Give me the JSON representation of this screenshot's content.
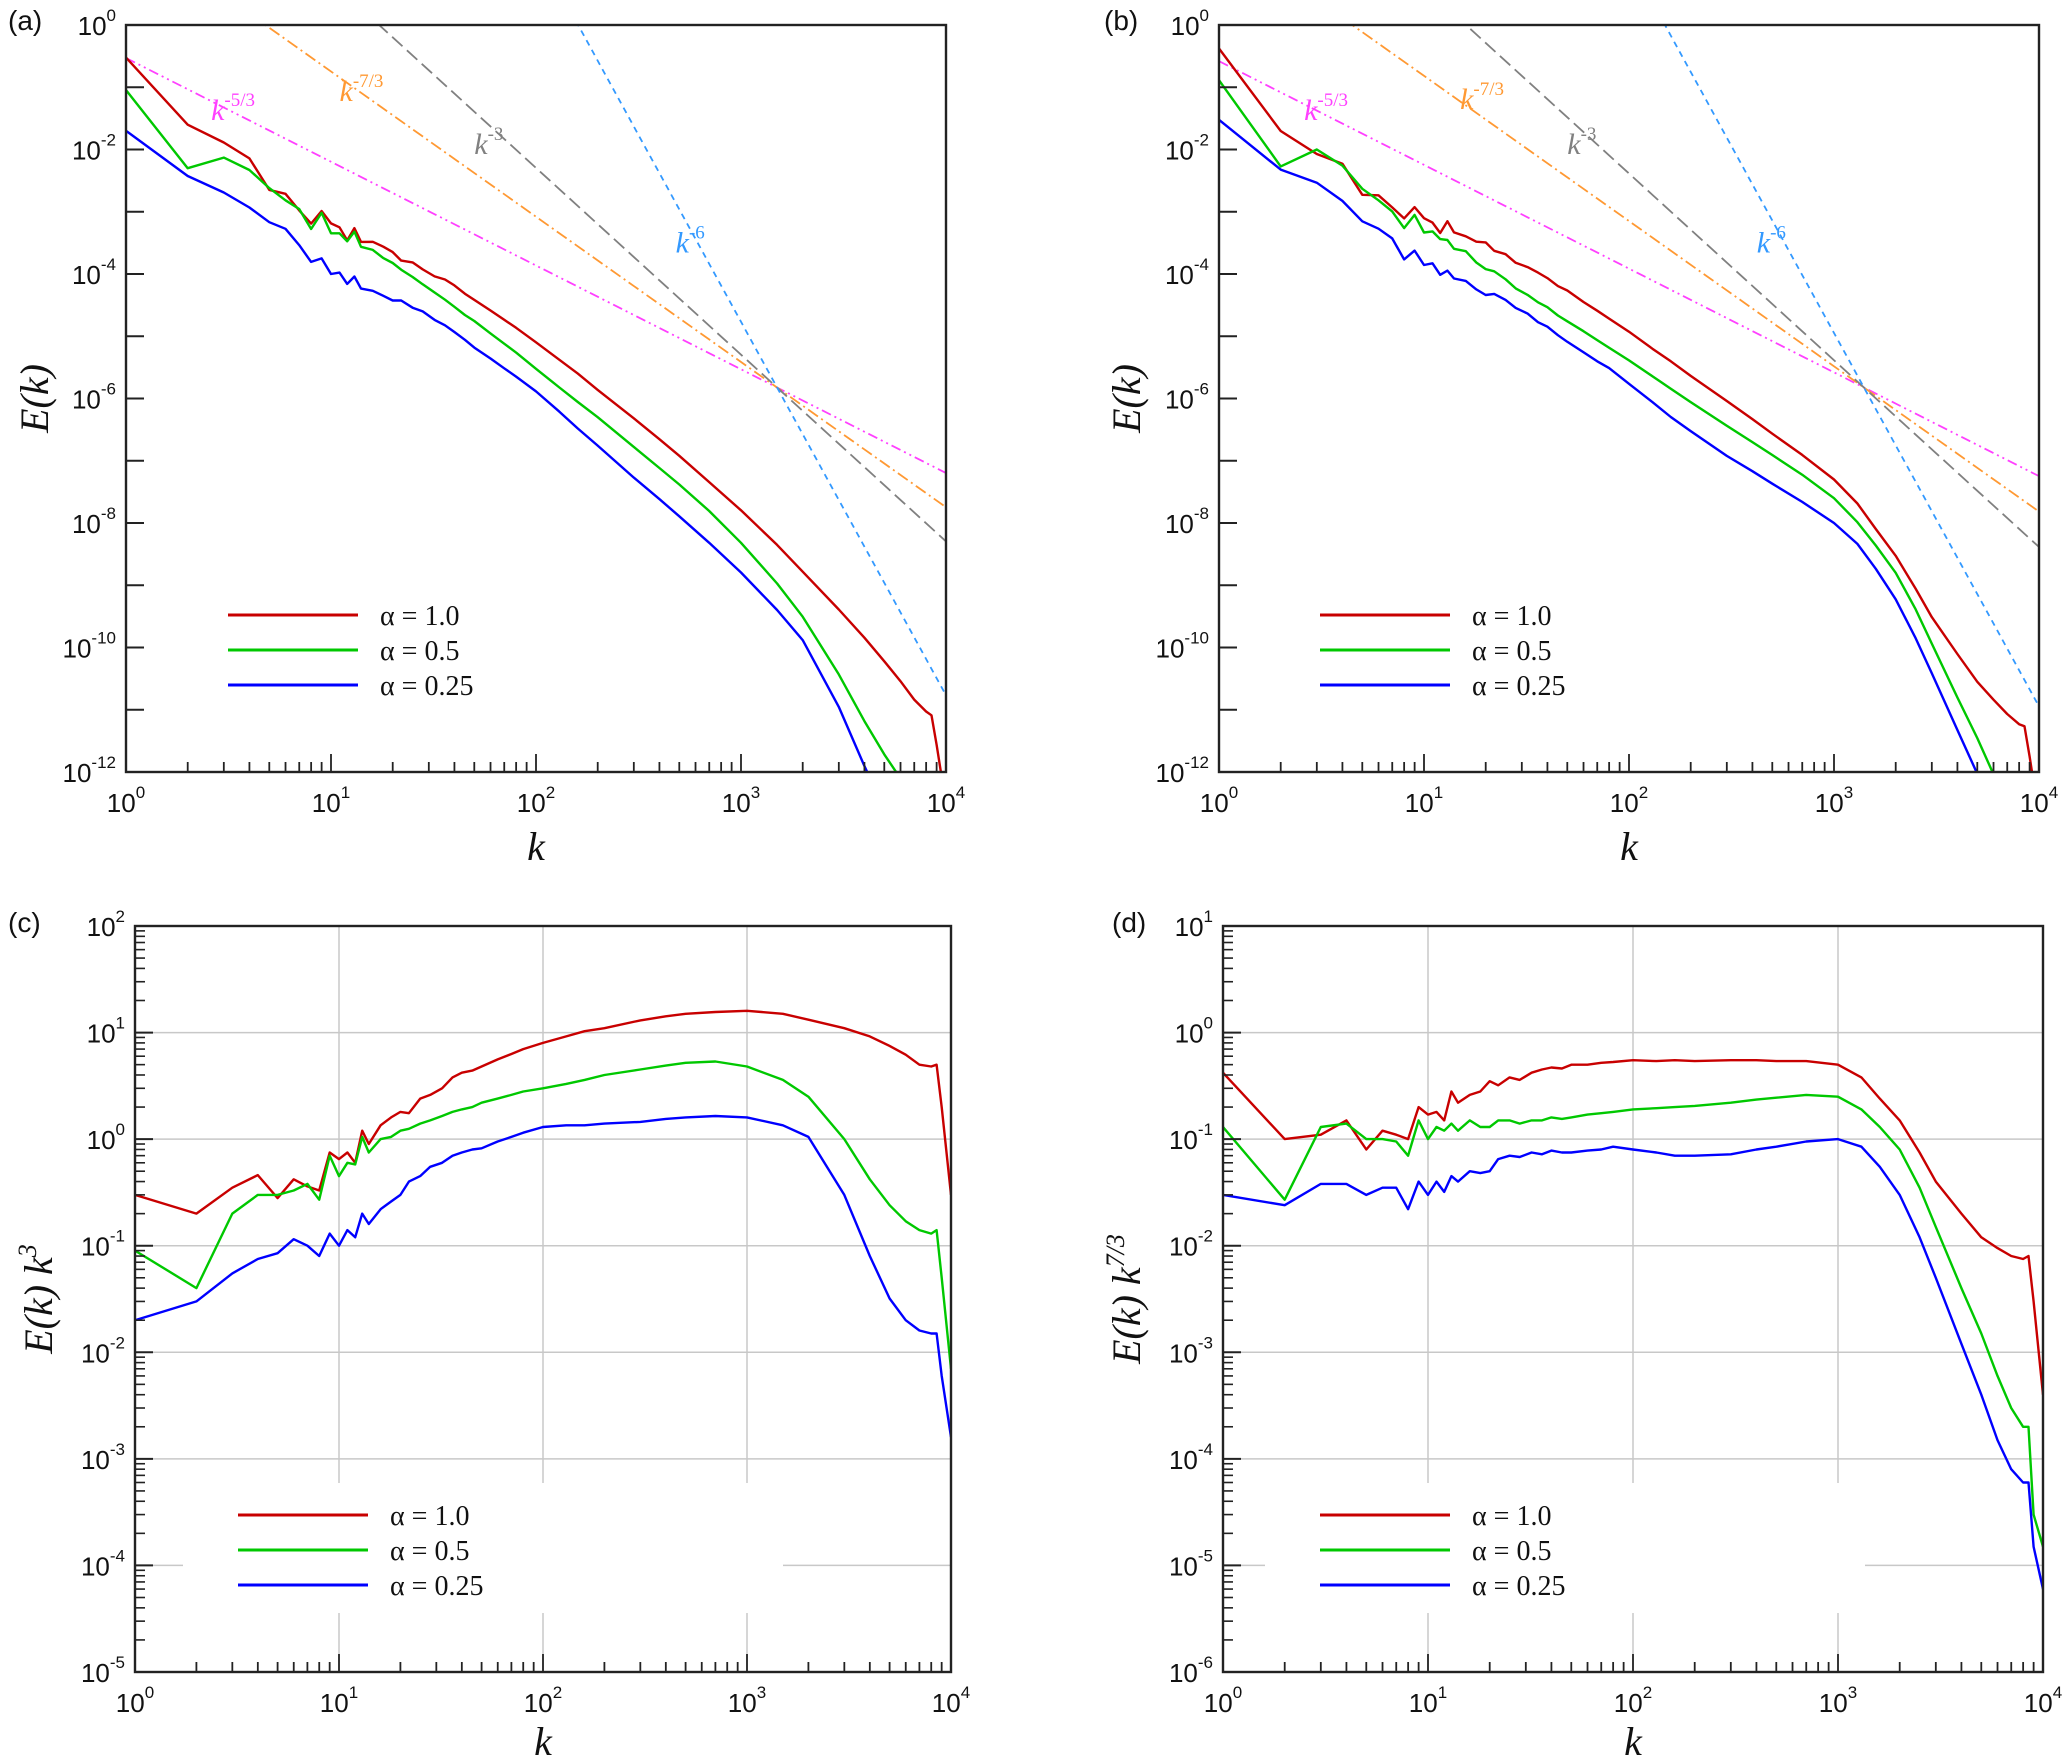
{
  "figure": {
    "colors": {
      "alpha_1_0": "#c80000",
      "alpha_0_5": "#00c800",
      "alpha_0_25": "#0000ff",
      "ref_5_3": "#ff40ff",
      "ref_7_3": "#ff9933",
      "ref_3": "#808080",
      "ref_6": "#3399ff",
      "grid": "#c8c8c8",
      "axis": "#222222"
    }
  },
  "chart_data": [
    {
      "panel": "(a)",
      "type": "line",
      "xscale": "log",
      "yscale": "log",
      "xlabel": "k",
      "ylabel": "E(k)",
      "ylabel_sup": "",
      "xlim": [
        1,
        10000
      ],
      "ylim": [
        1e-12,
        1
      ],
      "x_ticks": [
        {
          "base": "10",
          "exp": "0"
        },
        {
          "base": "10",
          "exp": "1"
        },
        {
          "base": "10",
          "exp": "2"
        },
        {
          "base": "10",
          "exp": "3"
        },
        {
          "base": "10",
          "exp": "4"
        }
      ],
      "y_ticks": [
        {
          "base": "10",
          "exp": "-12",
          "v": -12
        },
        {
          "base": "10",
          "exp": "-10",
          "v": -10
        },
        {
          "base": "10",
          "exp": "-8",
          "v": -8
        },
        {
          "base": "10",
          "exp": "-6",
          "v": -6
        },
        {
          "base": "10",
          "exp": "-4",
          "v": -4
        },
        {
          "base": "10",
          "exp": "-2",
          "v": -2
        },
        {
          "base": "10",
          "exp": "0",
          "v": 0
        }
      ],
      "grid": false,
      "legend_position": "bottom-left",
      "compensation_exponent": 0,
      "series_ref": "compensated_k3",
      "reference_lines": [
        {
          "name": "k^-5/3",
          "label_base": "k",
          "label_exp": "-5/3",
          "slope": -1.6667,
          "anchor_k": 1500,
          "anchor_E": 1.5e-06,
          "color_key": "ref_5_3",
          "dash": "10 4 2 4 2 4",
          "label_k": 2.6,
          "label_E": 0.03
        },
        {
          "name": "k^-7/3",
          "label_base": "k",
          "label_exp": "-7/3",
          "slope": -2.3333,
          "anchor_k": 1500,
          "anchor_E": 1.5e-06,
          "color_key": "ref_7_3",
          "dash": "12 4 2 4",
          "label_k": 11,
          "label_E": 0.06
        },
        {
          "name": "k^-3",
          "label_base": "k",
          "label_exp": "-3",
          "slope": -3,
          "anchor_k": 1500,
          "anchor_E": 1.5e-06,
          "color_key": "ref_3",
          "dash": "14 6",
          "label_k": 50,
          "label_E": 0.0085
        },
        {
          "name": "k^-6",
          "label_base": "k",
          "label_exp": "-6",
          "slope": -6,
          "anchor_k": 1500,
          "anchor_E": 1.5e-06,
          "color_key": "ref_6",
          "dash": "6 5",
          "label_k": 480,
          "label_E": 0.00022
        }
      ]
    },
    {
      "panel": "(b)",
      "type": "line",
      "xscale": "log",
      "yscale": "log",
      "xlabel": "k",
      "ylabel": "E(k)",
      "ylabel_sup": "",
      "xlim": [
        1,
        10000
      ],
      "ylim": [
        1e-12,
        1
      ],
      "x_ticks": [
        {
          "base": "10",
          "exp": "0"
        },
        {
          "base": "10",
          "exp": "1"
        },
        {
          "base": "10",
          "exp": "2"
        },
        {
          "base": "10",
          "exp": "3"
        },
        {
          "base": "10",
          "exp": "4"
        }
      ],
      "y_ticks": [
        {
          "base": "10",
          "exp": "-12",
          "v": -12
        },
        {
          "base": "10",
          "exp": "-10",
          "v": -10
        },
        {
          "base": "10",
          "exp": "-8",
          "v": -8
        },
        {
          "base": "10",
          "exp": "-6",
          "v": -6
        },
        {
          "base": "10",
          "exp": "-4",
          "v": -4
        },
        {
          "base": "10",
          "exp": "-2",
          "v": -2
        },
        {
          "base": "10",
          "exp": "0",
          "v": 0
        }
      ],
      "grid": false,
      "legend_position": "bottom-left",
      "compensation_exponent": 0,
      "series_ref": "compensated_k73",
      "reference_lines": [
        {
          "name": "k^-5/3",
          "label_base": "k",
          "label_exp": "-5/3",
          "slope": -1.6667,
          "anchor_k": 1400,
          "anchor_E": 1.5e-06,
          "color_key": "ref_5_3",
          "dash": "10 4 2 4 2 4",
          "label_k": 2.6,
          "label_E": 0.03
        },
        {
          "name": "k^-7/3",
          "label_base": "k",
          "label_exp": "-7/3",
          "slope": -2.3333,
          "anchor_k": 1400,
          "anchor_E": 1.5e-06,
          "color_key": "ref_7_3",
          "dash": "12 4 2 4",
          "label_k": 15,
          "label_E": 0.045
        },
        {
          "name": "k^-3",
          "label_base": "k",
          "label_exp": "-3",
          "slope": -3,
          "anchor_k": 1400,
          "anchor_E": 1.5e-06,
          "color_key": "ref_3",
          "dash": "14 6",
          "label_k": 50,
          "label_E": 0.0085
        },
        {
          "name": "k^-6",
          "label_base": "k",
          "label_exp": "-6",
          "slope": -6,
          "anchor_k": 1400,
          "anchor_E": 1.5e-06,
          "color_key": "ref_6",
          "dash": "6 5",
          "label_k": 420,
          "label_E": 0.00022
        }
      ]
    },
    {
      "panel": "(c)",
      "type": "line",
      "xscale": "log",
      "yscale": "log",
      "xlabel": "k",
      "ylabel": "E(k) k",
      "ylabel_sup": "3",
      "xlim": [
        1,
        10000
      ],
      "ylim": [
        1e-05,
        100
      ],
      "x_ticks": [
        {
          "base": "10",
          "exp": "0"
        },
        {
          "base": "10",
          "exp": "1"
        },
        {
          "base": "10",
          "exp": "2"
        },
        {
          "base": "10",
          "exp": "3"
        },
        {
          "base": "10",
          "exp": "4"
        }
      ],
      "y_ticks": [
        {
          "base": "10",
          "exp": "-5",
          "v": -5
        },
        {
          "base": "10",
          "exp": "-4",
          "v": -4
        },
        {
          "base": "10",
          "exp": "-3",
          "v": -3
        },
        {
          "base": "10",
          "exp": "-2",
          "v": -2
        },
        {
          "base": "10",
          "exp": "-1",
          "v": -1
        },
        {
          "base": "10",
          "exp": "0",
          "v": 0
        },
        {
          "base": "10",
          "exp": "1",
          "v": 1
        },
        {
          "base": "10",
          "exp": "2",
          "v": 2
        }
      ],
      "grid": true,
      "legend_position": "bottom-left",
      "compensation_exponent": 3,
      "series_ref": "compensated_k3",
      "reference_lines": []
    },
    {
      "panel": "(d)",
      "type": "line",
      "xscale": "log",
      "yscale": "log",
      "xlabel": "k",
      "ylabel": "E(k) k",
      "ylabel_sup": "7/3",
      "xlim": [
        1,
        10000
      ],
      "ylim": [
        1e-06,
        10
      ],
      "x_ticks": [
        {
          "base": "10",
          "exp": "0"
        },
        {
          "base": "10",
          "exp": "1"
        },
        {
          "base": "10",
          "exp": "2"
        },
        {
          "base": "10",
          "exp": "3"
        },
        {
          "base": "10",
          "exp": "4"
        }
      ],
      "y_ticks": [
        {
          "base": "10",
          "exp": "-6",
          "v": -6
        },
        {
          "base": "10",
          "exp": "-5",
          "v": -5
        },
        {
          "base": "10",
          "exp": "-4",
          "v": -4
        },
        {
          "base": "10",
          "exp": "-3",
          "v": -3
        },
        {
          "base": "10",
          "exp": "-2",
          "v": -2
        },
        {
          "base": "10",
          "exp": "-1",
          "v": -1
        },
        {
          "base": "10",
          "exp": "0",
          "v": 0
        },
        {
          "base": "10",
          "exp": "1",
          "v": 1
        }
      ],
      "grid": true,
      "legend_position": "bottom-left",
      "compensation_exponent": 2.3333,
      "series_ref": "compensated_k73",
      "reference_lines": []
    }
  ],
  "series_data": {
    "compensated_k3": {
      "note": "values of E(k)*k^3 for panels (a) and (c)",
      "k": [
        1,
        2,
        3,
        4,
        5,
        6,
        7,
        8,
        9,
        10,
        11,
        12,
        13,
        14,
        16,
        18,
        20,
        22,
        25,
        28,
        32,
        36,
        40,
        45,
        50,
        60,
        70,
        80,
        100,
        130,
        160,
        200,
        300,
        400,
        500,
        700,
        1000,
        1500,
        2000,
        3000,
        4000,
        5000,
        6000,
        7000,
        8000,
        8500,
        9000,
        10000
      ],
      "series": [
        {
          "name": "α = 1.0",
          "label": "α = 1.0",
          "color_key": "alpha_1_0",
          "values": [
            0.3,
            0.2,
            0.35,
            0.46,
            0.28,
            0.42,
            0.36,
            0.33,
            0.75,
            0.65,
            0.75,
            0.6,
            1.2,
            0.9,
            1.35,
            1.6,
            1.8,
            1.75,
            2.4,
            2.6,
            3.0,
            3.8,
            4.2,
            4.4,
            4.8,
            5.6,
            6.3,
            7.0,
            8.0,
            9.2,
            10.3,
            11.0,
            13.0,
            14.2,
            15.0,
            15.6,
            16.0,
            15.0,
            13.2,
            11.0,
            9.2,
            7.5,
            6.2,
            5.0,
            4.8,
            5.0,
            2.0,
            0.3
          ]
        },
        {
          "name": "α = 0.5",
          "label": "α = 0.5",
          "color_key": "alpha_0_5",
          "values": [
            0.09,
            0.04,
            0.2,
            0.3,
            0.3,
            0.33,
            0.38,
            0.27,
            0.7,
            0.45,
            0.6,
            0.58,
            1.05,
            0.75,
            1.0,
            1.05,
            1.2,
            1.25,
            1.4,
            1.5,
            1.65,
            1.8,
            1.9,
            2.0,
            2.2,
            2.4,
            2.6,
            2.8,
            3.0,
            3.3,
            3.6,
            4.0,
            4.5,
            4.9,
            5.2,
            5.35,
            4.8,
            3.6,
            2.5,
            1.0,
            0.42,
            0.24,
            0.17,
            0.14,
            0.13,
            0.14,
            0.05,
            0.007
          ]
        },
        {
          "name": "α = 0.25",
          "label": "α = 0.25",
          "color_key": "alpha_0_25",
          "values": [
            0.02,
            0.03,
            0.055,
            0.075,
            0.085,
            0.115,
            0.1,
            0.08,
            0.13,
            0.1,
            0.14,
            0.12,
            0.2,
            0.16,
            0.22,
            0.26,
            0.3,
            0.4,
            0.45,
            0.55,
            0.6,
            0.7,
            0.75,
            0.8,
            0.82,
            0.95,
            1.05,
            1.15,
            1.3,
            1.35,
            1.35,
            1.4,
            1.45,
            1.55,
            1.6,
            1.65,
            1.6,
            1.35,
            1.05,
            0.3,
            0.08,
            0.032,
            0.02,
            0.016,
            0.015,
            0.015,
            0.006,
            0.0016
          ]
        }
      ]
    },
    "compensated_k73": {
      "note": "values of E(k)*k^(7/3) for panels (b) and (d)",
      "k": [
        1,
        2,
        3,
        4,
        5,
        6,
        7,
        8,
        9,
        10,
        11,
        12,
        13,
        14,
        16,
        18,
        20,
        22,
        25,
        28,
        32,
        36,
        40,
        45,
        50,
        60,
        70,
        80,
        100,
        130,
        160,
        200,
        300,
        400,
        500,
        700,
        1000,
        1300,
        1600,
        2000,
        2500,
        3000,
        4000,
        5000,
        6000,
        7000,
        8000,
        8500,
        9000,
        10000
      ],
      "series": [
        {
          "name": "α = 1.0",
          "label": "α = 1.0",
          "color_key": "alpha_1_0",
          "values": [
            0.42,
            0.1,
            0.11,
            0.15,
            0.08,
            0.12,
            0.11,
            0.1,
            0.2,
            0.17,
            0.18,
            0.15,
            0.28,
            0.22,
            0.26,
            0.28,
            0.35,
            0.32,
            0.38,
            0.36,
            0.42,
            0.45,
            0.47,
            0.46,
            0.5,
            0.5,
            0.52,
            0.53,
            0.55,
            0.54,
            0.55,
            0.54,
            0.55,
            0.55,
            0.54,
            0.54,
            0.5,
            0.38,
            0.24,
            0.15,
            0.075,
            0.04,
            0.02,
            0.012,
            0.0095,
            0.008,
            0.0075,
            0.008,
            0.003,
            0.0004
          ]
        },
        {
          "name": "α = 0.5",
          "label": "α = 0.5",
          "color_key": "alpha_0_5",
          "values": [
            0.13,
            0.027,
            0.13,
            0.14,
            0.1,
            0.1,
            0.095,
            0.07,
            0.15,
            0.1,
            0.13,
            0.12,
            0.14,
            0.12,
            0.15,
            0.13,
            0.13,
            0.15,
            0.15,
            0.14,
            0.15,
            0.15,
            0.16,
            0.155,
            0.16,
            0.17,
            0.175,
            0.18,
            0.19,
            0.195,
            0.2,
            0.205,
            0.22,
            0.235,
            0.245,
            0.26,
            0.25,
            0.19,
            0.13,
            0.08,
            0.035,
            0.015,
            0.004,
            0.0015,
            0.0006,
            0.0003,
            0.0002,
            0.0002,
            3e-05,
            1.5e-05
          ]
        },
        {
          "name": "α = 0.25",
          "label": "α = 0.25",
          "color_key": "alpha_0_25",
          "values": [
            0.03,
            0.024,
            0.038,
            0.038,
            0.03,
            0.035,
            0.035,
            0.022,
            0.04,
            0.03,
            0.04,
            0.032,
            0.045,
            0.04,
            0.05,
            0.048,
            0.05,
            0.065,
            0.07,
            0.068,
            0.075,
            0.072,
            0.078,
            0.075,
            0.075,
            0.078,
            0.08,
            0.085,
            0.08,
            0.075,
            0.07,
            0.07,
            0.072,
            0.08,
            0.085,
            0.095,
            0.1,
            0.085,
            0.055,
            0.03,
            0.012,
            0.005,
            0.0012,
            0.0004,
            0.00015,
            8e-05,
            6e-05,
            6e-05,
            1.5e-05,
            6e-06
          ]
        }
      ]
    }
  },
  "legend": {
    "entries": [
      {
        "label": "α = 1.0",
        "color_key": "alpha_1_0"
      },
      {
        "label": "α = 0.5",
        "color_key": "alpha_0_5"
      },
      {
        "label": "α = 0.25",
        "color_key": "alpha_0_25"
      }
    ]
  }
}
